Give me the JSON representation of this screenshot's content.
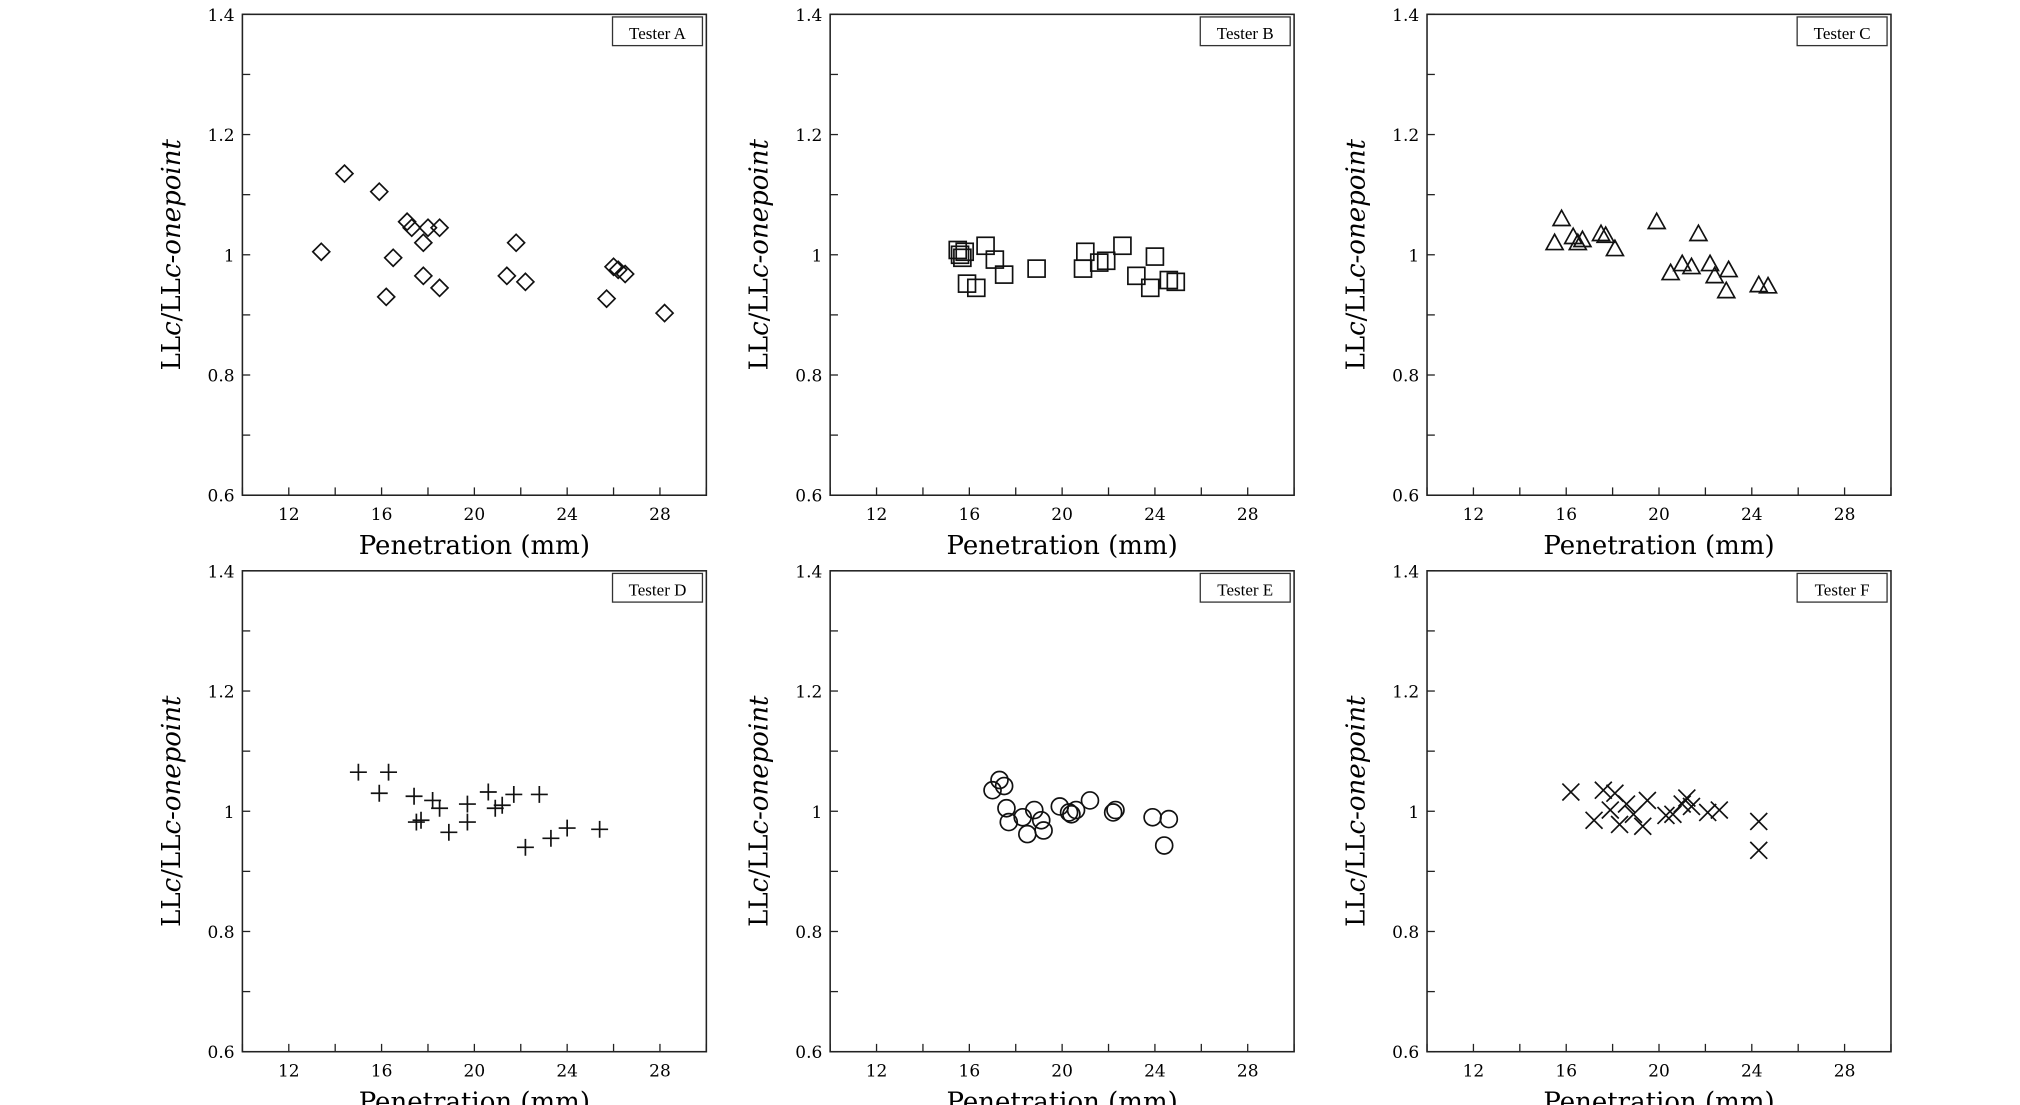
{
  "chart_data": [
    {
      "type": "scatter",
      "label": "Tester A",
      "marker": "diamond",
      "xlabel": "Penetration (mm)",
      "ylabel": {
        "a": "LL",
        "b": "c",
        "c": "/LL",
        "d": "c-onepoint"
      },
      "xlim": [
        10,
        30
      ],
      "ylim": [
        0.6,
        1.4
      ],
      "xticks": [
        12,
        16,
        20,
        24,
        28
      ],
      "yticks": [
        0.6,
        0.8,
        1,
        1.2,
        1.4
      ],
      "ytick_labels": [
        "0.6",
        "0.8",
        "1",
        "1.2",
        "1.4"
      ],
      "grid": false,
      "points": [
        [
          13.4,
          1.005
        ],
        [
          14.4,
          1.135
        ],
        [
          15.9,
          1.105
        ],
        [
          16.2,
          0.93
        ],
        [
          16.5,
          0.995
        ],
        [
          17.1,
          1.055
        ],
        [
          17.3,
          1.045
        ],
        [
          17.8,
          1.02
        ],
        [
          17.8,
          0.965
        ],
        [
          18.0,
          1.045
        ],
        [
          18.5,
          0.945
        ],
        [
          18.5,
          1.045
        ],
        [
          21.4,
          0.965
        ],
        [
          21.8,
          1.02
        ],
        [
          22.2,
          0.955
        ],
        [
          25.7,
          0.927
        ],
        [
          26.0,
          0.98
        ],
        [
          26.2,
          0.975
        ],
        [
          26.5,
          0.968
        ],
        [
          28.2,
          0.903
        ]
      ]
    },
    {
      "type": "scatter",
      "label": "Tester B",
      "marker": "square",
      "xlabel": "Penetration (mm)",
      "ylabel": {
        "a": "LL",
        "b": "c",
        "c": "/LL",
        "d": "c-onepoint"
      },
      "xlim": [
        10,
        30
      ],
      "ylim": [
        0.6,
        1.4
      ],
      "xticks": [
        12,
        16,
        20,
        24,
        28
      ],
      "yticks": [
        0.6,
        0.8,
        1,
        1.2,
        1.4
      ],
      "ytick_labels": [
        "0.6",
        "0.8",
        "1",
        "1.2",
        "1.4"
      ],
      "grid": false,
      "points": [
        [
          15.5,
          1.008
        ],
        [
          15.6,
          1.0
        ],
        [
          15.7,
          0.995
        ],
        [
          15.8,
          1.005
        ],
        [
          15.9,
          0.952
        ],
        [
          16.3,
          0.945
        ],
        [
          16.7,
          1.015
        ],
        [
          17.1,
          0.992
        ],
        [
          17.5,
          0.967
        ],
        [
          18.9,
          0.977
        ],
        [
          20.9,
          0.977
        ],
        [
          21.0,
          1.005
        ],
        [
          21.6,
          0.987
        ],
        [
          21.9,
          0.99
        ],
        [
          22.6,
          1.015
        ],
        [
          23.2,
          0.965
        ],
        [
          23.8,
          0.945
        ],
        [
          24.0,
          0.997
        ],
        [
          24.6,
          0.958
        ],
        [
          24.9,
          0.955
        ]
      ]
    },
    {
      "type": "scatter",
      "label": "Tester C",
      "marker": "triangle",
      "xlabel": "Penetration (mm)",
      "ylabel": {
        "a": "LL",
        "b": "c",
        "c": "/LL",
        "d": "c-onepoint"
      },
      "xlim": [
        10,
        30
      ],
      "ylim": [
        0.6,
        1.4
      ],
      "xticks": [
        12,
        16,
        20,
        24,
        28
      ],
      "yticks": [
        0.6,
        0.8,
        1,
        1.2,
        1.4
      ],
      "ytick_labels": [
        "0.6",
        "0.8",
        "1",
        "1.2",
        "1.4"
      ],
      "grid": false,
      "points": [
        [
          15.5,
          1.02
        ],
        [
          15.8,
          1.06
        ],
        [
          16.3,
          1.03
        ],
        [
          16.5,
          1.02
        ],
        [
          16.7,
          1.025
        ],
        [
          17.5,
          1.035
        ],
        [
          17.7,
          1.032
        ],
        [
          18.1,
          1.01
        ],
        [
          19.9,
          1.055
        ],
        [
          20.5,
          0.97
        ],
        [
          21.0,
          0.985
        ],
        [
          21.4,
          0.98
        ],
        [
          21.7,
          1.035
        ],
        [
          22.2,
          0.985
        ],
        [
          22.4,
          0.965
        ],
        [
          22.9,
          0.94
        ],
        [
          23.0,
          0.975
        ],
        [
          24.3,
          0.95
        ],
        [
          24.7,
          0.948
        ]
      ]
    },
    {
      "type": "scatter",
      "label": "Tester D",
      "marker": "plus",
      "xlabel": "Penetration (mm)",
      "ylabel": {
        "a": "LL",
        "b": "c",
        "c": "/LL",
        "d": "c-onepoint"
      },
      "xlim": [
        10,
        30
      ],
      "ylim": [
        0.6,
        1.4
      ],
      "xticks": [
        12,
        16,
        20,
        24,
        28
      ],
      "yticks": [
        0.6,
        0.8,
        1,
        1.2,
        1.4
      ],
      "ytick_labels": [
        "0.6",
        "0.8",
        "1",
        "1.2",
        "1.4"
      ],
      "grid": false,
      "points": [
        [
          15.0,
          1.065
        ],
        [
          15.9,
          1.03
        ],
        [
          16.3,
          1.065
        ],
        [
          17.4,
          1.025
        ],
        [
          17.5,
          0.982
        ],
        [
          17.7,
          0.985
        ],
        [
          18.2,
          1.018
        ],
        [
          18.5,
          1.005
        ],
        [
          18.9,
          0.965
        ],
        [
          19.7,
          1.012
        ],
        [
          19.7,
          0.982
        ],
        [
          20.6,
          1.032
        ],
        [
          20.9,
          1.005
        ],
        [
          21.2,
          1.01
        ],
        [
          21.7,
          1.028
        ],
        [
          22.2,
          0.94
        ],
        [
          22.8,
          1.028
        ],
        [
          23.3,
          0.955
        ],
        [
          24.0,
          0.972
        ],
        [
          25.4,
          0.97
        ]
      ]
    },
    {
      "type": "scatter",
      "label": "Tester E",
      "marker": "circle",
      "xlabel": "Penetration (mm)",
      "ylabel": {
        "a": "LL",
        "b": "c",
        "c": "/LL",
        "d": "c-onepoint"
      },
      "xlim": [
        10,
        30
      ],
      "ylim": [
        0.6,
        1.4
      ],
      "xticks": [
        12,
        16,
        20,
        24,
        28
      ],
      "yticks": [
        0.6,
        0.8,
        1,
        1.2,
        1.4
      ],
      "ytick_labels": [
        "0.6",
        "0.8",
        "1",
        "1.2",
        "1.4"
      ],
      "grid": false,
      "points": [
        [
          17.0,
          1.035
        ],
        [
          17.3,
          1.052
        ],
        [
          17.5,
          1.042
        ],
        [
          17.6,
          1.005
        ],
        [
          17.7,
          0.982
        ],
        [
          18.3,
          0.99
        ],
        [
          18.5,
          0.962
        ],
        [
          18.8,
          1.002
        ],
        [
          19.1,
          0.985
        ],
        [
          19.2,
          0.968
        ],
        [
          19.9,
          1.008
        ],
        [
          20.3,
          0.998
        ],
        [
          20.4,
          0.995
        ],
        [
          20.6,
          1.002
        ],
        [
          21.2,
          1.018
        ],
        [
          22.2,
          0.998
        ],
        [
          22.3,
          1.002
        ],
        [
          23.9,
          0.99
        ],
        [
          24.4,
          0.943
        ],
        [
          24.6,
          0.987
        ]
      ]
    },
    {
      "type": "scatter",
      "label": "Tester F",
      "marker": "cross",
      "xlabel": "Penetration (mm)",
      "ylabel": {
        "a": "LL",
        "b": "c",
        "c": "/LL",
        "d": "c-onepoint"
      },
      "xlim": [
        10,
        30
      ],
      "ylim": [
        0.6,
        1.4
      ],
      "xticks": [
        12,
        16,
        20,
        24,
        28
      ],
      "yticks": [
        0.6,
        0.8,
        1,
        1.2,
        1.4
      ],
      "ytick_labels": [
        "0.6",
        "0.8",
        "1",
        "1.2",
        "1.4"
      ],
      "grid": false,
      "points": [
        [
          16.2,
          1.032
        ],
        [
          17.2,
          0.985
        ],
        [
          17.6,
          1.035
        ],
        [
          17.9,
          1.002
        ],
        [
          18.1,
          1.03
        ],
        [
          18.3,
          0.978
        ],
        [
          18.6,
          1.012
        ],
        [
          18.9,
          0.995
        ],
        [
          19.3,
          0.975
        ],
        [
          19.5,
          1.018
        ],
        [
          20.3,
          0.993
        ],
        [
          20.6,
          0.995
        ],
        [
          21.0,
          1.012
        ],
        [
          21.2,
          1.022
        ],
        [
          21.4,
          1.008
        ],
        [
          22.1,
          0.998
        ],
        [
          22.6,
          1.002
        ],
        [
          24.3,
          0.983
        ],
        [
          24.3,
          0.935
        ]
      ]
    }
  ]
}
